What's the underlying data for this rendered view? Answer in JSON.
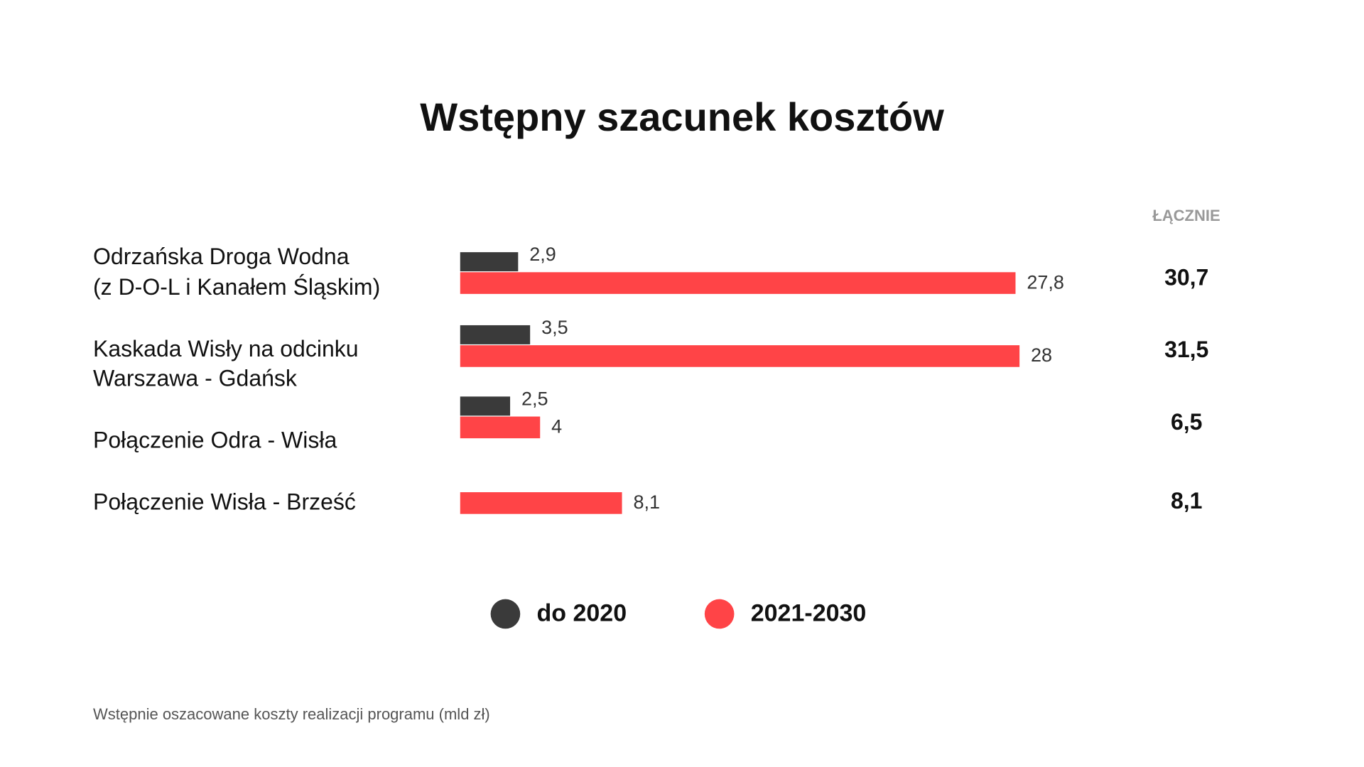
{
  "chart_data": {
    "type": "bar",
    "title": "Wstępny szacunek kosztów",
    "footnote": "Wstępnie oszacowane koszty realizacji programu (mld zł)",
    "categories": [
      [
        "Odrzańska Droga Wodna",
        "(z D-O-L i Kanałem Śląskim)"
      ],
      [
        "Kaskada Wisły na odcinku",
        "Warszawa - Gdańsk"
      ],
      [
        "Połączenie Odra - Wisła"
      ],
      [
        "Połączenie Wisła - Brześć"
      ]
    ],
    "series": [
      {
        "name": "do 2020",
        "color": "#3a3a3a",
        "values": [
          2.9,
          3.5,
          2.5,
          null
        ],
        "value_labels": [
          "2,9",
          "3,5",
          "2,5",
          null
        ]
      },
      {
        "name": "2021-2030",
        "color": "#ff4447",
        "values": [
          27.8,
          28,
          4,
          8.1
        ],
        "value_labels": [
          "27,8",
          "28",
          "4",
          "8,1"
        ]
      }
    ],
    "totals": {
      "label": "ŁĄCZNIE",
      "values": [
        30.7,
        31.5,
        6.5,
        8.1
      ],
      "value_labels": [
        "30,7",
        "31,5",
        "6,5",
        "8,1"
      ]
    },
    "legend": "bottom"
  }
}
